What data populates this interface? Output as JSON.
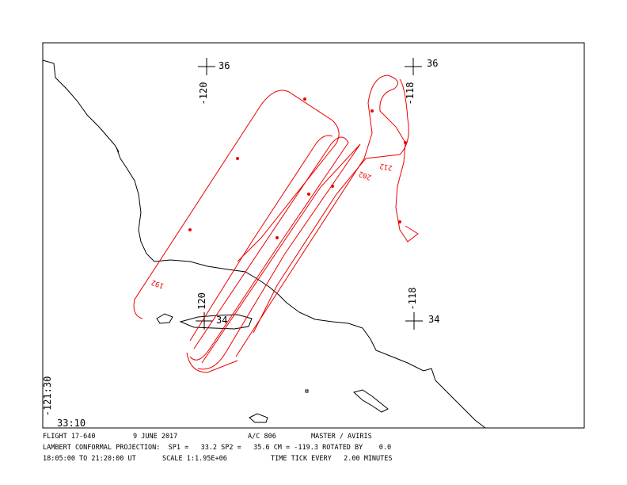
{
  "map": {
    "grid_labels": {
      "nw_lat": "36",
      "nw_lon": "-120",
      "ne_lat": "36",
      "ne_lon": "-118",
      "se_lat": "34",
      "se_lon": "-118",
      "sw_lat": "34",
      "sw_lon": "120",
      "corner_lon": "-121:30",
      "corner_lat": "33:10"
    },
    "time_labels": [
      "192",
      "202",
      "212"
    ]
  },
  "footer": {
    "line1": [
      "FLIGHT 17-640",
      "9 JUNE 2017",
      "A/C 806",
      "MASTER / AVIRIS"
    ],
    "line2": "LAMBERT CONFORMAL PROJECTION:  SP1 =   33.2 SP2 =   35.6 CM = -119.3 ROTATED BY    0.0",
    "line3": [
      "18:05:00 TO 21:20:00 UT",
      "SCALE 1:1.95E+06",
      "TIME TICK EVERY   2.00 MINUTES"
    ]
  }
}
